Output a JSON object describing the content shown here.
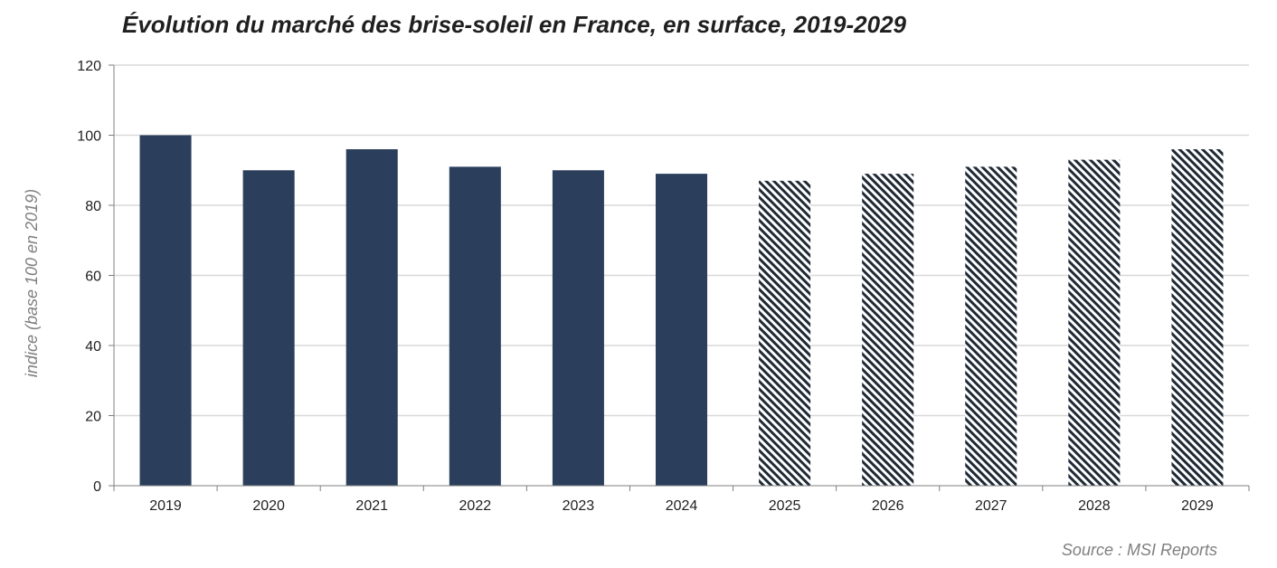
{
  "chart_data": {
    "type": "bar",
    "title": "Évolution du marché des brise-soleil en France, en surface, 2019-2029",
    "ylabel": "indice (base 100 en 2019)",
    "xlabel": "",
    "ylim": [
      0,
      120
    ],
    "yticks": [
      "0",
      "20",
      "40",
      "60",
      "80",
      "100",
      "120"
    ],
    "grid": true,
    "categories": [
      "2019",
      "2020",
      "2021",
      "2022",
      "2023",
      "2024",
      "2025",
      "2026",
      "2027",
      "2028",
      "2029"
    ],
    "values": [
      100,
      90,
      96,
      91,
      90,
      89,
      87,
      89,
      91,
      93,
      96
    ],
    "forecast_from": "2025",
    "colors": {
      "actual": "#2b3f5c",
      "forecast_stripe": "#1f2a36",
      "grid": "#d9d9d9",
      "axis": "#7f7f7f"
    },
    "source": "Source : MSI Reports"
  }
}
